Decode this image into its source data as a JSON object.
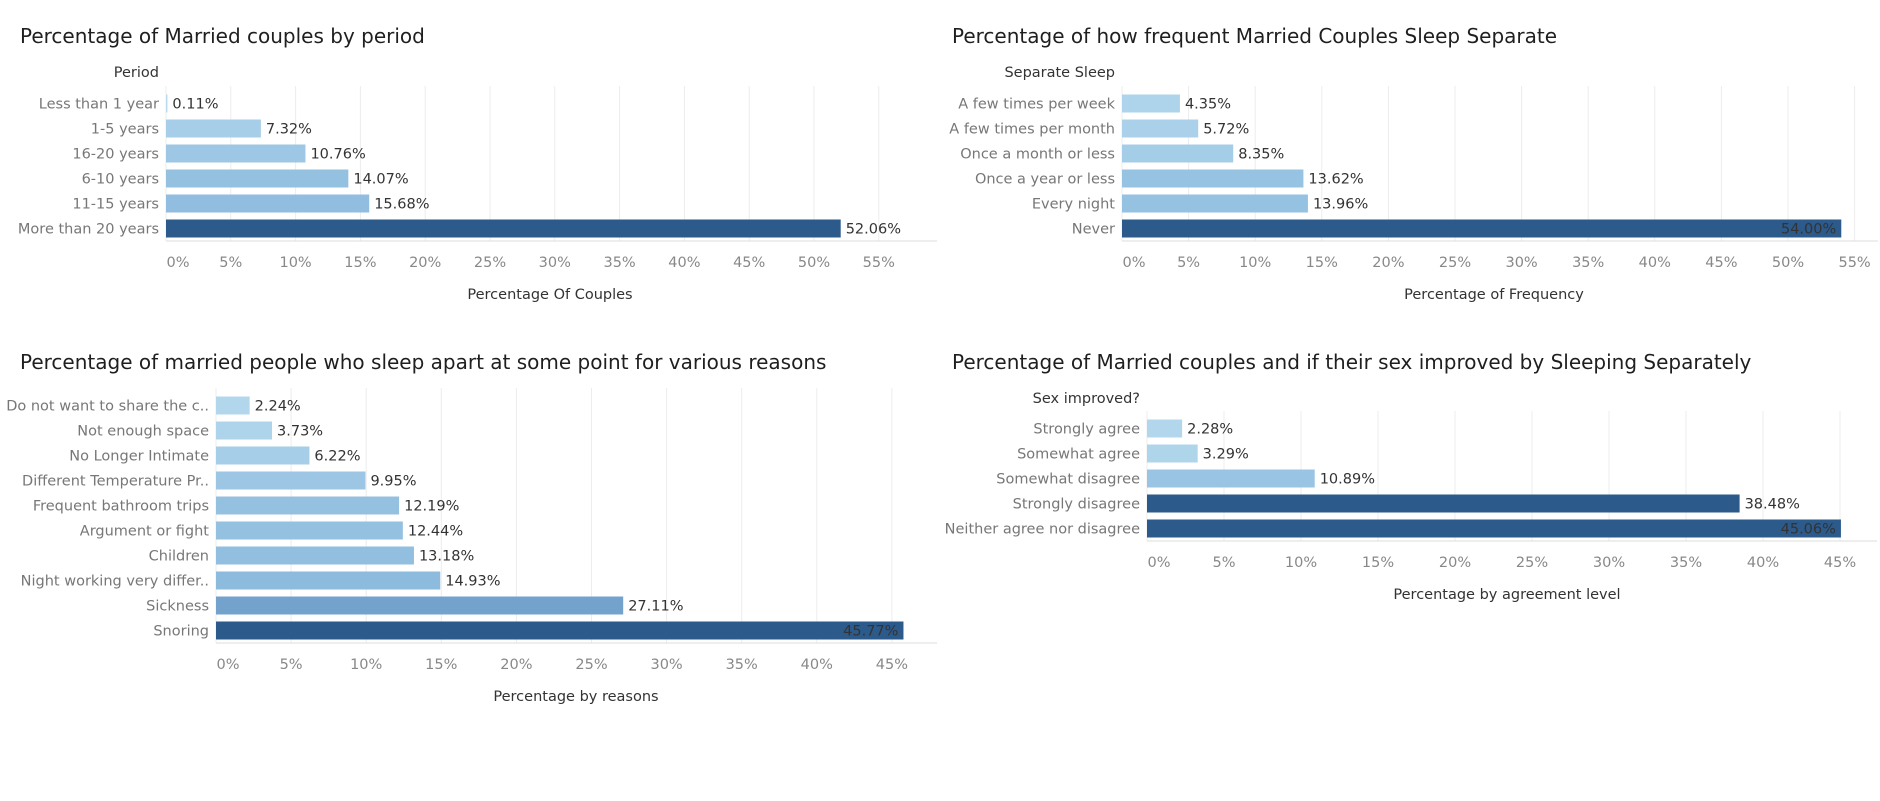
{
  "chart_data": [
    {
      "type": "bar",
      "orientation": "horizontal",
      "title": "Percentage of Married couples by period",
      "category_header": "Period",
      "xlabel": "Percentage Of Couples",
      "categories": [
        "Less than 1 year",
        "1-5 years",
        "16-20 years",
        "6-10 years",
        "11-15 years",
        "More than 20 years"
      ],
      "values": [
        0.11,
        7.32,
        10.76,
        14.07,
        15.68,
        52.06
      ],
      "value_labels": [
        "0.11%",
        "7.32%",
        "10.76%",
        "14.07%",
        "15.68%",
        "52.06%"
      ],
      "xticks": [
        "0%",
        "5%",
        "10%",
        "15%",
        "20%",
        "25%",
        "30%",
        "35%",
        "40%",
        "45%",
        "50%",
        "55%"
      ],
      "xlim": [
        0,
        59
      ],
      "grid": true
    },
    {
      "type": "bar",
      "orientation": "horizontal",
      "title": "Percentage of how frequent Married Couples Sleep Separate",
      "category_header": "Separate Sleep",
      "xlabel": "Percentage of Frequency",
      "categories": [
        "A few times per week",
        "A few times per month",
        "Once a month or less",
        "Once a year or less",
        "Every night",
        "Never"
      ],
      "values": [
        4.35,
        5.72,
        8.35,
        13.62,
        13.96,
        54.0
      ],
      "value_labels": [
        "4.35%",
        "5.72%",
        "8.35%",
        "13.62%",
        "13.96%",
        "54.00%"
      ],
      "xticks": [
        "0%",
        "5%",
        "10%",
        "15%",
        "20%",
        "25%",
        "30%",
        "35%",
        "40%",
        "45%",
        "50%",
        "55%"
      ],
      "xlim": [
        0,
        56
      ],
      "grid": true
    },
    {
      "type": "bar",
      "orientation": "horizontal",
      "title": "Percentage of married people who sleep apart at some point for various reasons",
      "category_header": "",
      "xlabel": "Percentage by reasons",
      "categories": [
        "Do not want to share the c..",
        "Not enough space",
        "No Longer Intimate",
        "Different Temperature Pr..",
        "Frequent bathroom trips",
        "Argument or fight",
        "Children",
        "Night working very differ..",
        "Sickness",
        "Snoring"
      ],
      "values": [
        2.24,
        3.73,
        6.22,
        9.95,
        12.19,
        12.44,
        13.18,
        14.93,
        27.11,
        45.77
      ],
      "value_labels": [
        "2.24%",
        "3.73%",
        "6.22%",
        "9.95%",
        "12.19%",
        "12.44%",
        "13.18%",
        "14.93%",
        "27.11%",
        "45.77%"
      ],
      "xticks": [
        "0%",
        "5%",
        "10%",
        "15%",
        "20%",
        "25%",
        "30%",
        "35%",
        "40%",
        "45%"
      ],
      "xlim": [
        0,
        48
      ],
      "grid": true
    },
    {
      "type": "bar",
      "orientation": "horizontal",
      "title": "Percentage of Married couples and if their sex improved by Sleeping Separately",
      "category_header": "Sex improved?",
      "xlabel": "Percentage by agreement level",
      "categories": [
        "Strongly agree",
        "Somewhat agree",
        "Somewhat disagree",
        "Strongly disagree",
        "Neither agree nor disagree"
      ],
      "values": [
        2.28,
        3.29,
        10.89,
        38.48,
        45.06
      ],
      "value_labels": [
        "2.28%",
        "3.29%",
        "10.89%",
        "38.48%",
        "45.06%"
      ],
      "xticks": [
        "0%",
        "5%",
        "10%",
        "15%",
        "20%",
        "25%",
        "30%",
        "35%",
        "40%",
        "45%"
      ],
      "xlim": [
        0,
        47
      ],
      "grid": true
    }
  ],
  "colors": {
    "scale_light": "#b9dcef",
    "scale_mid": "#8ab9dd",
    "scale_dark": "#2b5a8b",
    "grid": "#ececec",
    "label_gray": "#777777",
    "text_dark": "#333333"
  }
}
